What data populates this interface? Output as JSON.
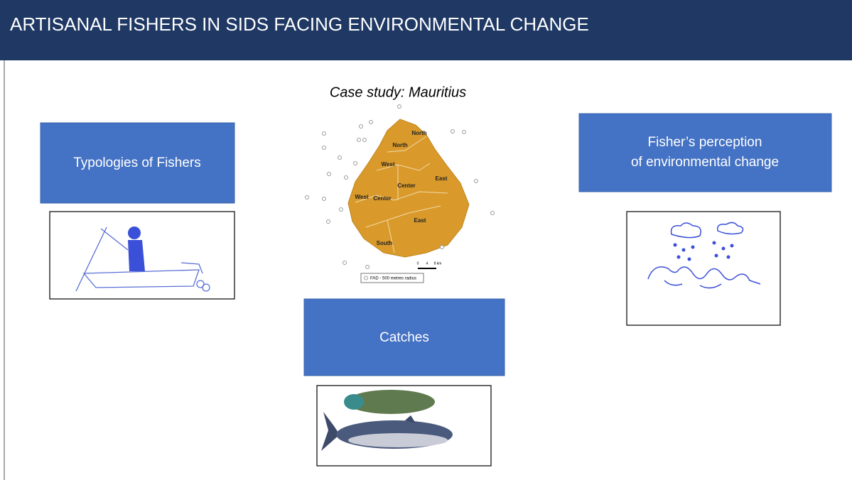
{
  "header": {
    "title": "ARTISANAL FISHERS IN SIDS FACING ENVIRONMENTAL CHANGE"
  },
  "case_study": "Case study: Mauritius",
  "boxes": [
    {
      "lines": [
        "Typologies of Fishers"
      ]
    },
    {
      "lines": [
        "Fisher’s perception",
        "of environmental change"
      ]
    },
    {
      "lines": [
        "Catches"
      ]
    }
  ],
  "map": {
    "labels": [
      "North",
      "North",
      "West",
      "East",
      "Center",
      "West",
      "Center",
      "East",
      "South"
    ],
    "scale": [
      "0",
      "4",
      "8 km"
    ],
    "legend": "FAD - 500 metres radius"
  }
}
